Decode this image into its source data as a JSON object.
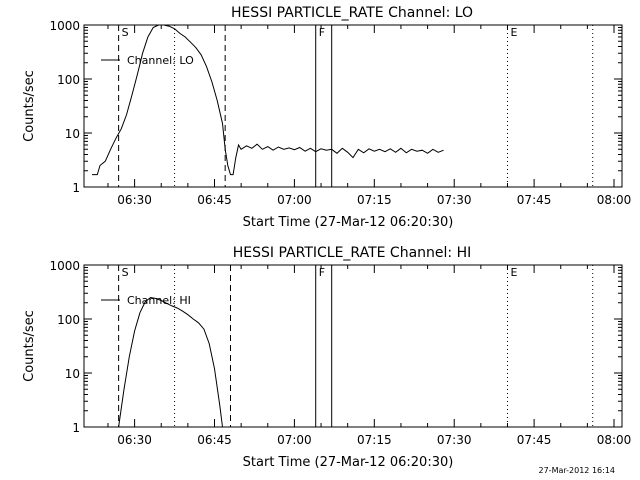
{
  "footer": {
    "timestamp": "27-Mar-2012 16:14"
  },
  "chart_data": [
    {
      "type": "line",
      "title": "HESSI PARTICLE_RATE Channel: LO",
      "xlabel": "Start Time (27-Mar-12 06:20:30)",
      "ylabel": "Counts/sec",
      "xlim": [
        "06:20:30",
        "08:01:30"
      ],
      "ylim": [
        1,
        1000
      ],
      "yscale": "log",
      "grid": false,
      "legend_position": "top-left",
      "x_tick_labels": [
        "06:30",
        "06:45",
        "07:00",
        "07:15",
        "07:30",
        "07:45",
        "08:00"
      ],
      "y_tick_labels": [
        "1",
        "10",
        "100",
        "1000"
      ],
      "series": [
        {
          "name": "Channel: LO",
          "x": [
            "06:22:00",
            "06:23:00",
            "06:23:30",
            "06:24:30",
            "06:25:30",
            "06:26:30",
            "06:27:30",
            "06:28:30",
            "06:29:30",
            "06:30:30",
            "06:31:30",
            "06:32:30",
            "06:33:30",
            "06:34:30",
            "06:35:30",
            "06:36:30",
            "06:37:30",
            "06:38:30",
            "06:39:30",
            "06:40:30",
            "06:41:30",
            "06:42:30",
            "06:43:30",
            "06:44:30",
            "06:45:30",
            "06:46:30",
            "06:47:00",
            "06:47:30",
            "06:48:00",
            "06:48:30",
            "06:49:00",
            "06:49:30",
            "06:50:00",
            "06:51:00",
            "06:52:00",
            "06:53:00",
            "06:54:00",
            "06:55:00",
            "06:56:00",
            "06:57:00",
            "06:58:00",
            "06:59:00",
            "07:00:00",
            "07:01:00",
            "07:02:00",
            "07:03:00",
            "07:04:00",
            "07:05:00",
            "07:06:00",
            "07:07:00",
            "07:08:00",
            "07:09:00",
            "07:10:00",
            "07:11:00",
            "07:12:00",
            "07:13:00",
            "07:14:00",
            "07:15:00",
            "07:16:00",
            "07:17:00",
            "07:18:00",
            "07:19:00",
            "07:20:00",
            "07:21:00",
            "07:22:00",
            "07:23:00",
            "07:24:00",
            "07:25:00",
            "07:26:00",
            "07:27:00",
            "07:28:00"
          ],
          "y": [
            1.7,
            1.7,
            2.5,
            3,
            5,
            8,
            12,
            22,
            50,
            120,
            300,
            600,
            900,
            1020,
            1000,
            950,
            850,
            700,
            600,
            480,
            380,
            280,
            170,
            90,
            40,
            15,
            5,
            2.5,
            1.7,
            1.7,
            3.5,
            6,
            5,
            5.8,
            5.2,
            6.2,
            5,
            5.6,
            4.8,
            5.5,
            5,
            5.3,
            4.9,
            5.4,
            4.6,
            5.2,
            4.5,
            5.1,
            4.8,
            5,
            4.2,
            5.2,
            4.4,
            3.5,
            5,
            4.3,
            5.1,
            4.6,
            5,
            4.5,
            5.1,
            4.4,
            5.2,
            4.3,
            5,
            4.6,
            4.8,
            4.2,
            5,
            4.4,
            4.8
          ]
        }
      ],
      "markers": {
        "solid": [
          "07:04:00",
          "07:07:00"
        ],
        "dashed": [
          "06:27:00",
          "06:47:00"
        ],
        "dotted": [
          "06:37:30",
          "07:40:00",
          "07:56:00"
        ],
        "labels": [
          {
            "text": "S",
            "x": "06:27:00"
          },
          {
            "text": "F",
            "x": "07:04:00"
          },
          {
            "text": "E",
            "x": "07:40:00"
          }
        ]
      }
    },
    {
      "type": "line",
      "title": "HESSI PARTICLE_RATE Channel: HI",
      "xlabel": "Start Time (27-Mar-12 06:20:30)",
      "ylabel": "Counts/sec",
      "xlim": [
        "06:20:30",
        "08:01:30"
      ],
      "ylim": [
        1,
        1000
      ],
      "yscale": "log",
      "grid": false,
      "legend_position": "top-left",
      "x_tick_labels": [
        "06:30",
        "06:45",
        "07:00",
        "07:15",
        "07:30",
        "07:45",
        "08:00"
      ],
      "y_tick_labels": [
        "1",
        "10",
        "100",
        "1000"
      ],
      "series": [
        {
          "name": "Channel: HI",
          "x": [
            "06:27:00",
            "06:28:00",
            "06:29:00",
            "06:30:00",
            "06:31:00",
            "06:32:00",
            "06:33:00",
            "06:34:00",
            "06:35:00",
            "06:36:00",
            "06:37:00",
            "06:38:00",
            "06:39:00",
            "06:40:00",
            "06:41:00",
            "06:42:00",
            "06:43:00",
            "06:44:00",
            "06:45:00",
            "06:46:00",
            "06:46:30"
          ],
          "y": [
            1,
            5,
            20,
            60,
            130,
            210,
            250,
            240,
            220,
            195,
            175,
            160,
            140,
            120,
            100,
            85,
            65,
            35,
            12,
            2.5,
            1
          ]
        }
      ],
      "markers": {
        "solid": [
          "07:04:00",
          "07:07:00"
        ],
        "dashed": [
          "06:27:00",
          "06:48:00"
        ],
        "dotted": [
          "06:37:30",
          "07:40:00",
          "07:56:00"
        ],
        "labels": [
          {
            "text": "S",
            "x": "06:27:00"
          },
          {
            "text": "F",
            "x": "07:04:00"
          },
          {
            "text": "E",
            "x": "07:40:00"
          }
        ]
      }
    }
  ]
}
